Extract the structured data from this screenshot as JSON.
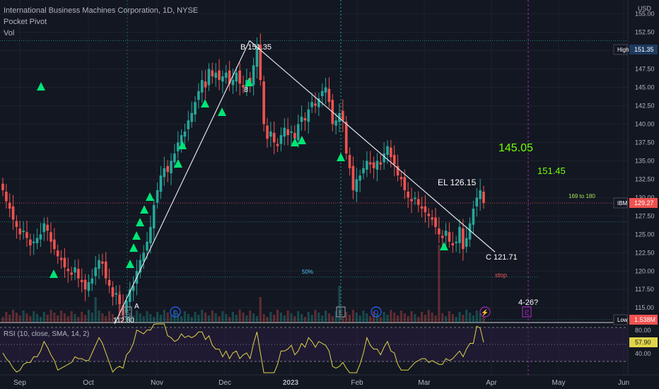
{
  "header": {
    "title": "International Business Machines Corporation, 1D, NYSE",
    "indicator1": "Pocket Pivot",
    "indicator2": "Vol"
  },
  "colors": {
    "up": "#26a69a",
    "down": "#ef5350",
    "trendline": "#e0e3eb",
    "pivot": "#00e676",
    "rsi": "#e0d44a",
    "background": "#131722"
  },
  "chart_data": {
    "type": "candlestick",
    "symbol": "IBM",
    "y_axis": {
      "unit": "USD",
      "ticks": [
        "155.00",
        "152.50",
        "150.00",
        "147.50",
        "145.00",
        "142.50",
        "140.00",
        "137.50",
        "135.00",
        "132.50",
        "130.00",
        "127.50",
        "125.00",
        "122.50",
        "120.00",
        "117.50",
        "115.00"
      ],
      "ylim": [
        113.0,
        156.5
      ]
    },
    "x_axis": {
      "labels": [
        "Sep",
        "Oct",
        "Nov",
        "Dec",
        "2023",
        "Feb",
        "Mar",
        "Apr",
        "May",
        "Jun"
      ]
    },
    "price_tags": {
      "high_label": "High",
      "high_value": "151.35",
      "last_symbol": "IBM",
      "last_value": "129.27",
      "low_label": "Low",
      "volume_value": "1.538M"
    },
    "closes": [
      131.0,
      129.5,
      128.5,
      127.0,
      126.0,
      125.0,
      125.5,
      124.5,
      123.5,
      124.0,
      124.5,
      125.0,
      126.5,
      125.5,
      124.0,
      123.0,
      122.0,
      121.5,
      120.5,
      120.0,
      119.5,
      120.5,
      119.0,
      118.5,
      117.5,
      118.5,
      119.0,
      120.5,
      121.5,
      121.0,
      119.0,
      118.0,
      116.5,
      117.0,
      115.5,
      114.0,
      116.0,
      117.5,
      118.0,
      120.0,
      121.5,
      122.5,
      124.0,
      126.0,
      129.0,
      131.0,
      133.0,
      134.0,
      133.5,
      135.0,
      136.0,
      137.5,
      138.5,
      139.0,
      140.5,
      141.5,
      143.0,
      144.5,
      146.0,
      145.0,
      147.5,
      146.5,
      147.0,
      146.0,
      146.5,
      147.0,
      145.5,
      146.0,
      147.0,
      145.5,
      145.0,
      146.0,
      145.5,
      148.0,
      150.5,
      146.0,
      140.0,
      138.0,
      139.0,
      137.5,
      137.0,
      138.5,
      139.5,
      138.5,
      139.0,
      138.0,
      140.0,
      141.0,
      140.5,
      142.0,
      143.0,
      142.5,
      143.5,
      144.5,
      145.0,
      143.0,
      140.0,
      140.5,
      141.5,
      140.5,
      136.0,
      134.0,
      131.0,
      132.5,
      133.0,
      134.0,
      135.0,
      134.5,
      134.0,
      135.0,
      134.5,
      136.0,
      137.0,
      135.5,
      134.5,
      133.0,
      132.5,
      131.0,
      130.0,
      129.5,
      130.0,
      129.0,
      128.5,
      128.0,
      127.5,
      127.0,
      126.0,
      125.0,
      124.5,
      125.5,
      124.0,
      123.5,
      124.0,
      126.0,
      123.0,
      124.5,
      126.5,
      128.5,
      130.0,
      131.0,
      129.27
    ],
    "high": "151.35",
    "low": "112.80",
    "volume_spike_days": [
      27,
      34,
      75,
      98,
      127
    ]
  },
  "annotations": {
    "point_a": "A",
    "point_b": "B 151.35",
    "b_small": "B",
    "point_c": "C 121.71",
    "low_label": "112.80",
    "entry": "EL 126.15",
    "target1": "145.05",
    "target2": "151.45",
    "range": "169 to 180",
    "stop": "stop",
    "fib": "50%",
    "date_mark": "4-26?",
    "event_e": "E",
    "event_d": "D",
    "event_bolt": "⚡"
  },
  "rsi": {
    "label": "RSI (10, close, SMA, 14, 2)",
    "ticks": [
      "80.00",
      "40.00"
    ],
    "value": "57.90"
  }
}
